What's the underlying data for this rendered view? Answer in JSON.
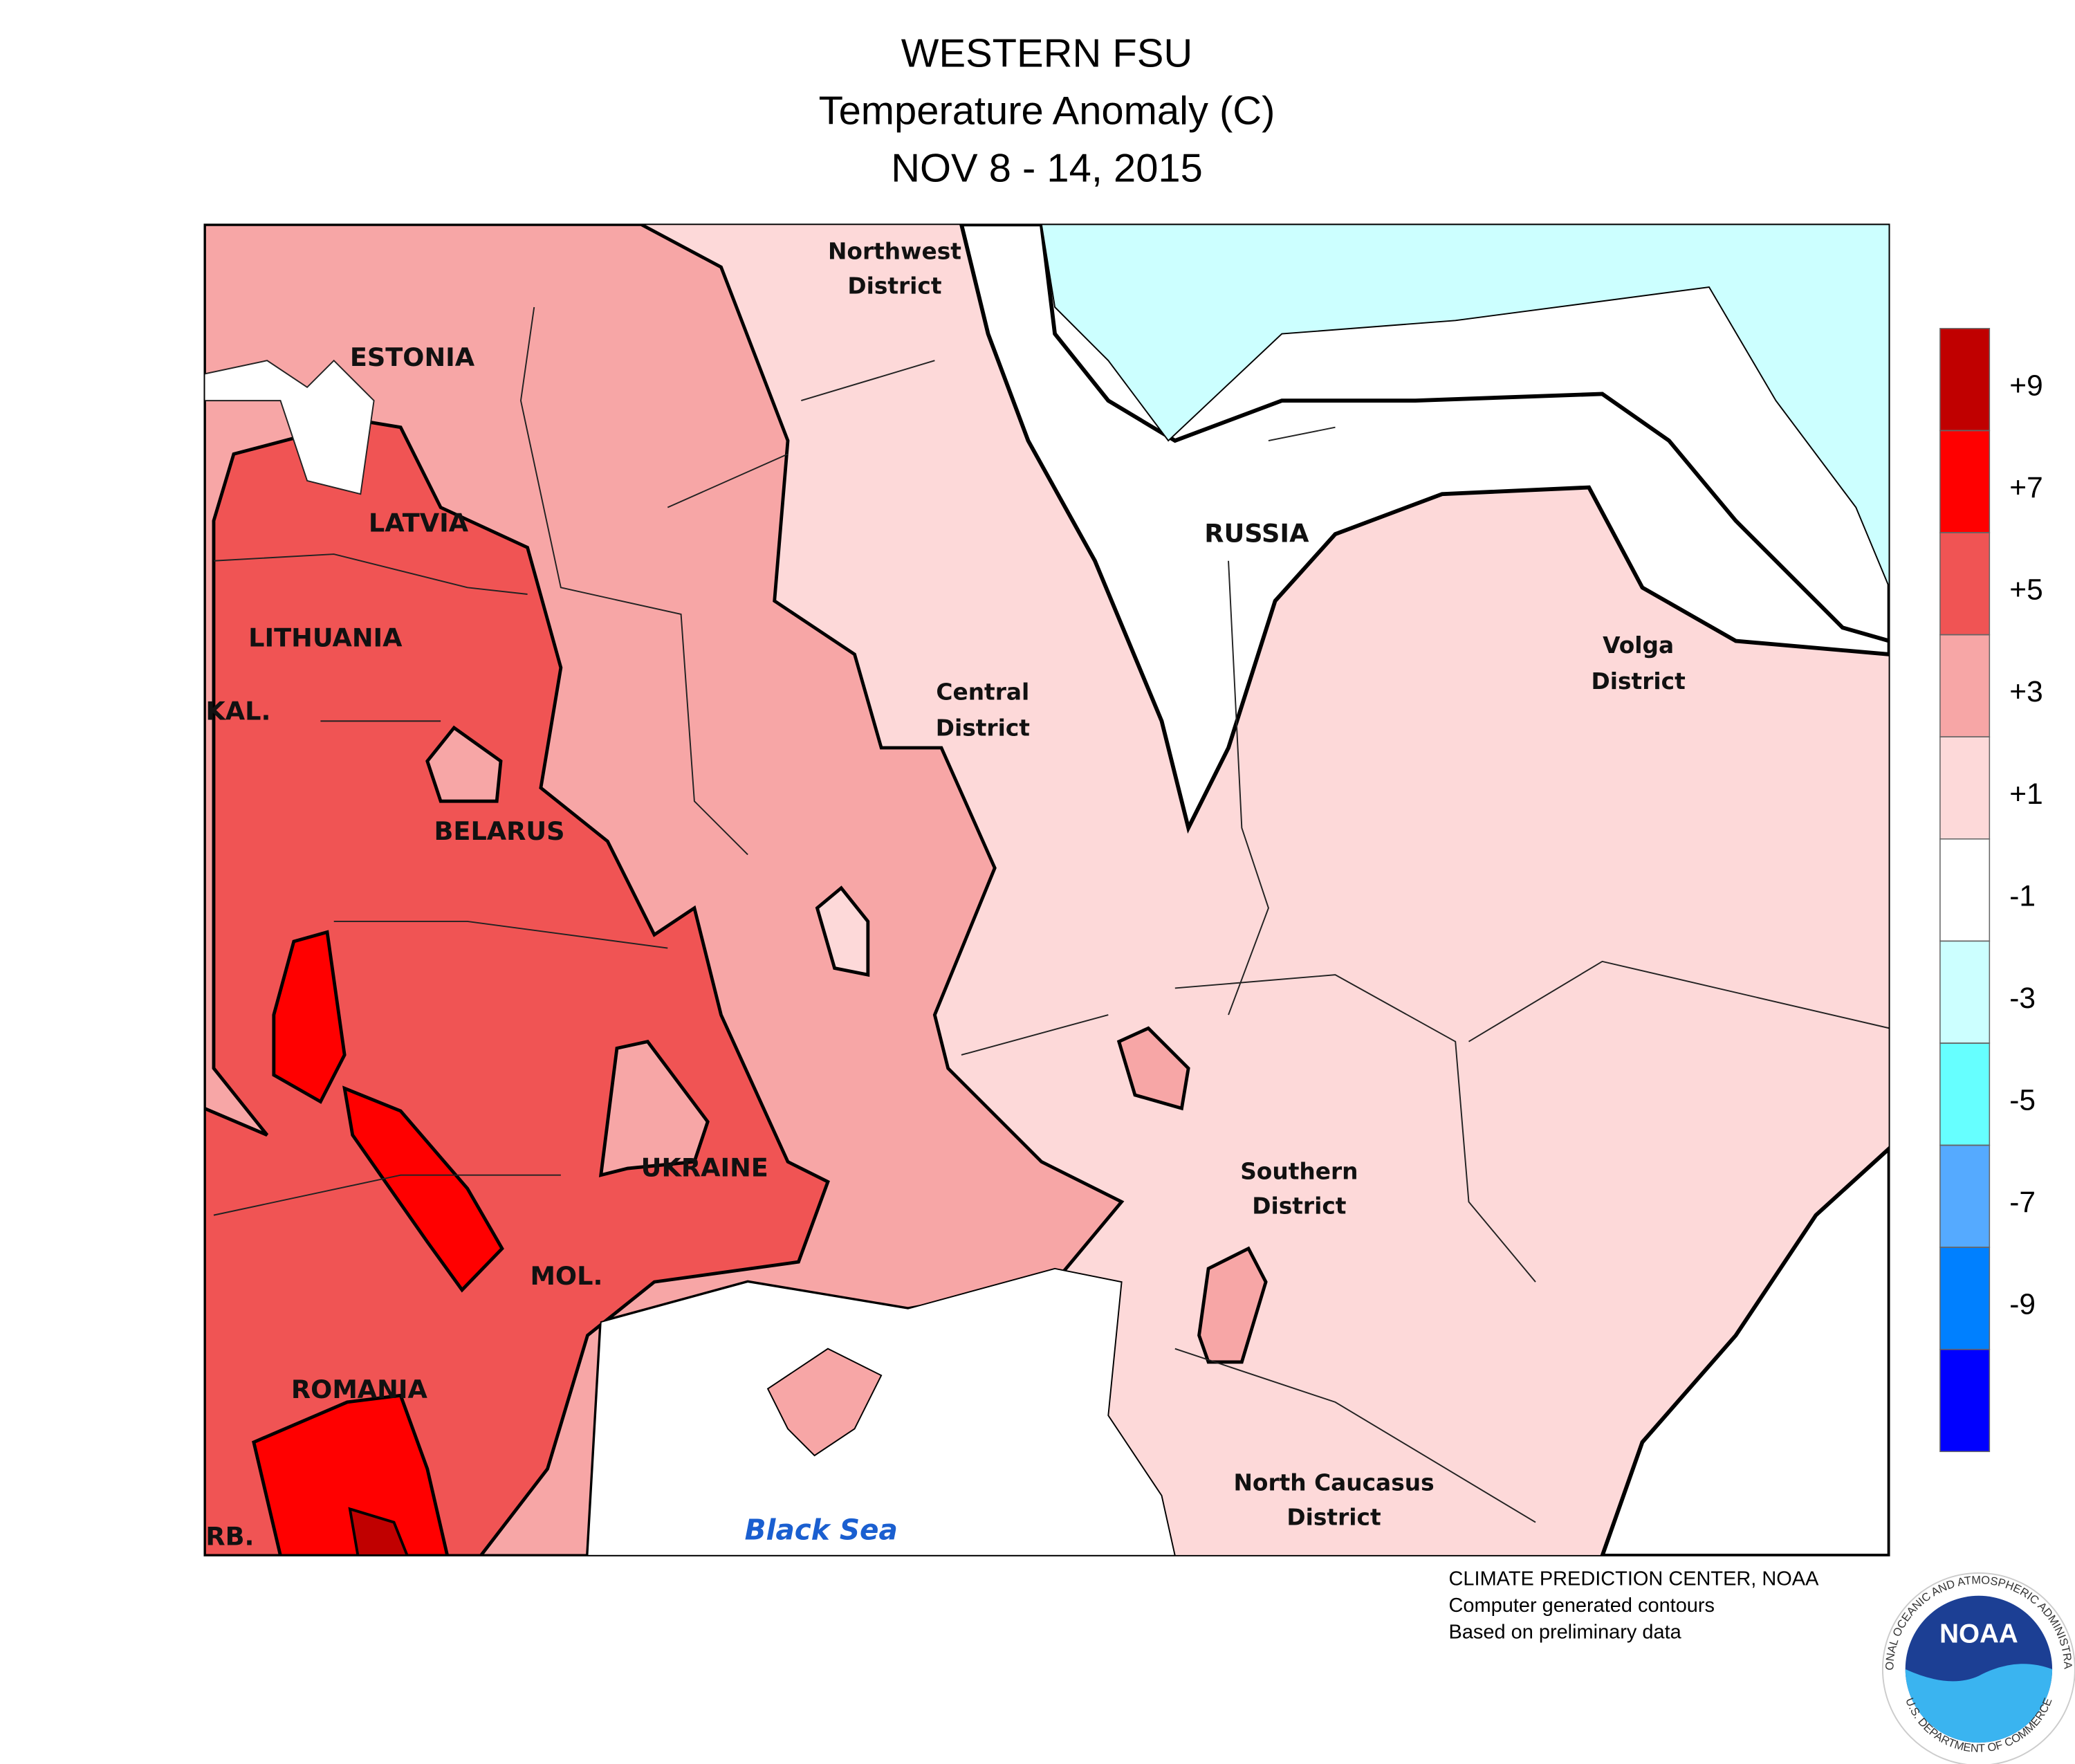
{
  "header": {
    "title": [
      "WESTERN FSU",
      "Temperature Anomaly (C)",
      "NOV 8 - 14, 2015"
    ]
  },
  "map": {
    "countries": [
      "ESTONIA",
      "LATVIA",
      "LITHUANIA",
      "KAL.",
      "BELARUS",
      "UKRAINE",
      "MOL.",
      "ROMANIA",
      "RB.",
      "RUSSIA"
    ],
    "districts": [
      [
        "Northwest",
        "District"
      ],
      [
        "Central",
        "District"
      ],
      [
        "Volga",
        "District"
      ],
      [
        "Southern",
        "District"
      ],
      [
        "North Caucasus",
        "District"
      ]
    ],
    "sea": "Black Sea"
  },
  "legend": {
    "colors": [
      "#c00000",
      "#ff0000",
      "#f05454",
      "#f7a6a6",
      "#fdd9d9",
      "#ffffff",
      "#ccffff",
      "#66ffff",
      "#55aaff",
      "#0080ff",
      "#0000ff"
    ],
    "ticks": [
      {
        "value": 9,
        "label": "+9"
      },
      {
        "value": 7,
        "label": "+7"
      },
      {
        "value": 5,
        "label": "+5"
      },
      {
        "value": 3,
        "label": "+3"
      },
      {
        "value": 1,
        "label": "+1"
      },
      -1,
      -3,
      -5,
      -7,
      -9
    ]
  },
  "footer": [
    "CLIMATE PREDICTION CENTER, NOAA",
    "Computer generated contours",
    "Based on preliminary data"
  ],
  "logo": {
    "text": "NOAA",
    "top_ring": "NATIONAL OCEANIC AND ATMOSPHERIC ADMINISTRATION",
    "bottom_ring": "U.S. DEPARTMENT OF COMMERCE"
  }
}
